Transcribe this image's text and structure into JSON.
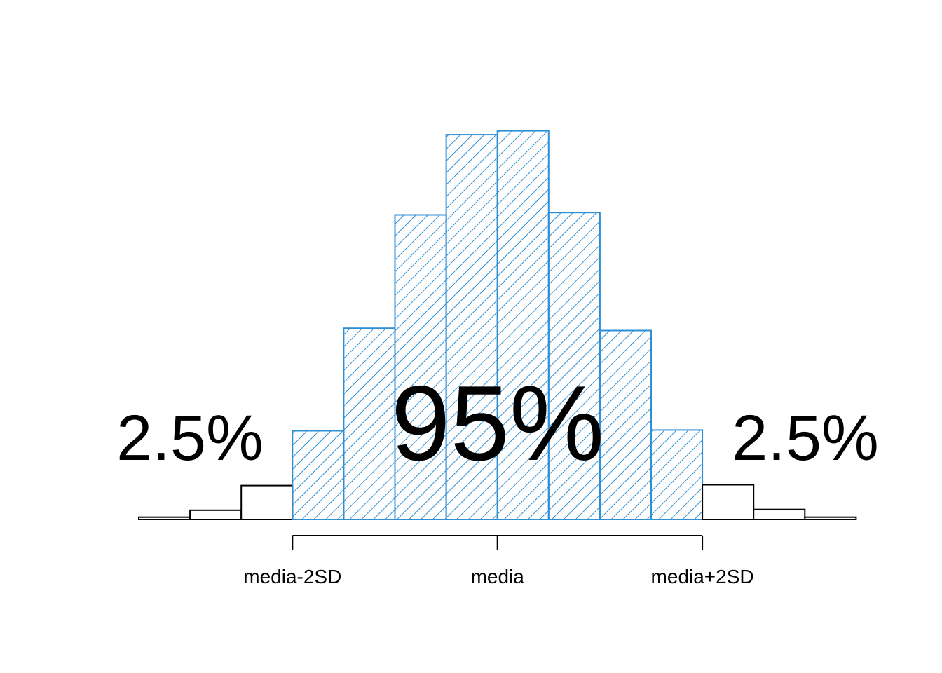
{
  "chart_data": {
    "type": "bar",
    "bins": [
      {
        "value": 0.3,
        "highlight": false
      },
      {
        "value": 1.2,
        "highlight": false
      },
      {
        "value": 4.4,
        "highlight": false
      },
      {
        "value": 11.5,
        "highlight": true
      },
      {
        "value": 24.8,
        "highlight": true
      },
      {
        "value": 39.5,
        "highlight": true
      },
      {
        "value": 49.9,
        "highlight": true
      },
      {
        "value": 50.4,
        "highlight": true
      },
      {
        "value": 39.8,
        "highlight": true
      },
      {
        "value": 24.5,
        "highlight": true
      },
      {
        "value": 11.6,
        "highlight": true
      },
      {
        "value": 4.5,
        "highlight": false
      },
      {
        "value": 1.3,
        "highlight": false
      },
      {
        "value": 0.3,
        "highlight": false
      }
    ],
    "ylim": [
      0,
      52
    ],
    "axis": {
      "ticks": [
        {
          "bin_edge": 3,
          "label": "media-2SD"
        },
        {
          "bin_edge": 7,
          "label": "media"
        },
        {
          "bin_edge": 11,
          "label": "media+2SD"
        }
      ]
    },
    "annotations": {
      "left": "2.5%",
      "center": "95%",
      "right": "2.5%"
    },
    "colors": {
      "highlight": "#2f8fd5",
      "outline": "#000000"
    },
    "grid": false
  }
}
